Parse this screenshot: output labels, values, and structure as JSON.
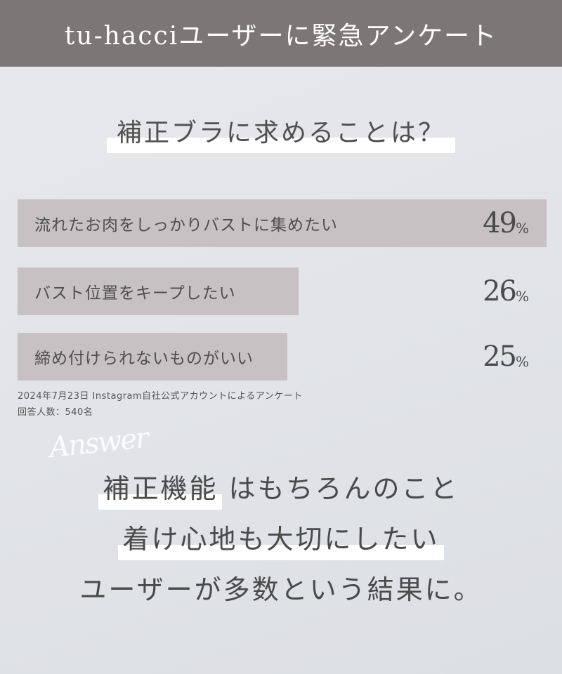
{
  "header": {
    "title": "tu-hacciユーザーに緊急アンケート"
  },
  "question": "補正ブラに求めることは？",
  "chart_data": {
    "type": "bar",
    "orientation": "horizontal",
    "categories": [
      "流れたお肉をしっかりバストに集めたい",
      "バスト位置をキープしたい",
      "締め付けられないものがいい"
    ],
    "values": [
      49,
      26,
      25
    ],
    "unit": "%",
    "bar_color": "#c7c1c3"
  },
  "notes": {
    "source": "2024年7月23日 Instagram自社公式アカウントによるアンケート",
    "respondents": "回答人数：540名"
  },
  "answer": {
    "script_word": "Answer",
    "line1_highlight": "補正機能",
    "line1_rest": " はもちろんのこと",
    "line2": "着け心地も大切にしたい",
    "line3": "ユーザーが多数という結果に。"
  },
  "colors": {
    "header_bg": "#7b7776",
    "highlight": "#ffffff"
  }
}
